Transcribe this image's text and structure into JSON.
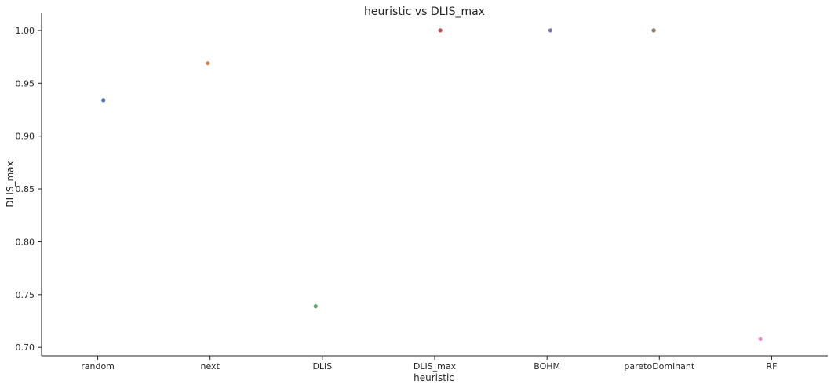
{
  "chart_data": {
    "type": "scatter",
    "title": "heuristic vs DLIS_max",
    "xlabel": "heuristic",
    "ylabel": "DLIS_max",
    "categories": [
      "random",
      "next",
      "DLIS",
      "DLIS_max",
      "BOHM",
      "paretoDominant",
      "RF"
    ],
    "points": [
      {
        "category": "random",
        "jitter": 0.05,
        "value": 0.934,
        "color": "#4c72b0"
      },
      {
        "category": "next",
        "jitter": -0.02,
        "value": 0.969,
        "color": "#dd8452"
      },
      {
        "category": "DLIS",
        "jitter": -0.06,
        "value": 0.739,
        "color": "#55a868"
      },
      {
        "category": "DLIS_max",
        "jitter": 0.05,
        "value": 1.0,
        "color": "#c44e52"
      },
      {
        "category": "BOHM",
        "jitter": 0.03,
        "value": 1.0,
        "color": "#8172b3"
      },
      {
        "category": "paretoDominant",
        "jitter": -0.05,
        "value": 1.0,
        "color": "#937860"
      },
      {
        "category": "RF",
        "jitter": -0.1,
        "value": 0.708,
        "color": "#da8bc3"
      }
    ],
    "ylim": [
      0.692,
      1.017
    ],
    "yticks": [
      0.7,
      0.75,
      0.8,
      0.85,
      0.9,
      0.95,
      1.0
    ],
    "ytick_labels": [
      "0.70",
      "0.75",
      "0.80",
      "0.85",
      "0.90",
      "0.95",
      "1.00"
    ],
    "grid": false,
    "legend": "none"
  }
}
